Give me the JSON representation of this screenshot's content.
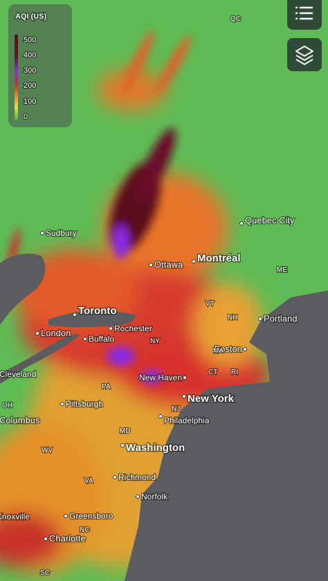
{
  "legend": {
    "title": "AQI (US)",
    "ticks": [
      500,
      400,
      300,
      200,
      100,
      0
    ]
  },
  "cities": [
    "Sudbury",
    "Quebec City",
    "Ottawa",
    "Montréal",
    "Portland",
    "Toronto",
    "London",
    "Rochester",
    "Buffalo",
    "Boston",
    "Cleveland",
    "New Haven",
    "New York",
    "Pittsburgh",
    "Columbus",
    "Philadelphia",
    "Washington",
    "Richmond",
    "Norfolk",
    "Greensboro",
    "Knoxville",
    "Charlotte"
  ],
  "regions": [
    "QC",
    "ME",
    "VT",
    "NH",
    "NY",
    "MA",
    "CT",
    "RI",
    "PA",
    "OH",
    "NJ",
    "MD",
    "WV",
    "VA",
    "NC",
    "SC"
  ]
}
